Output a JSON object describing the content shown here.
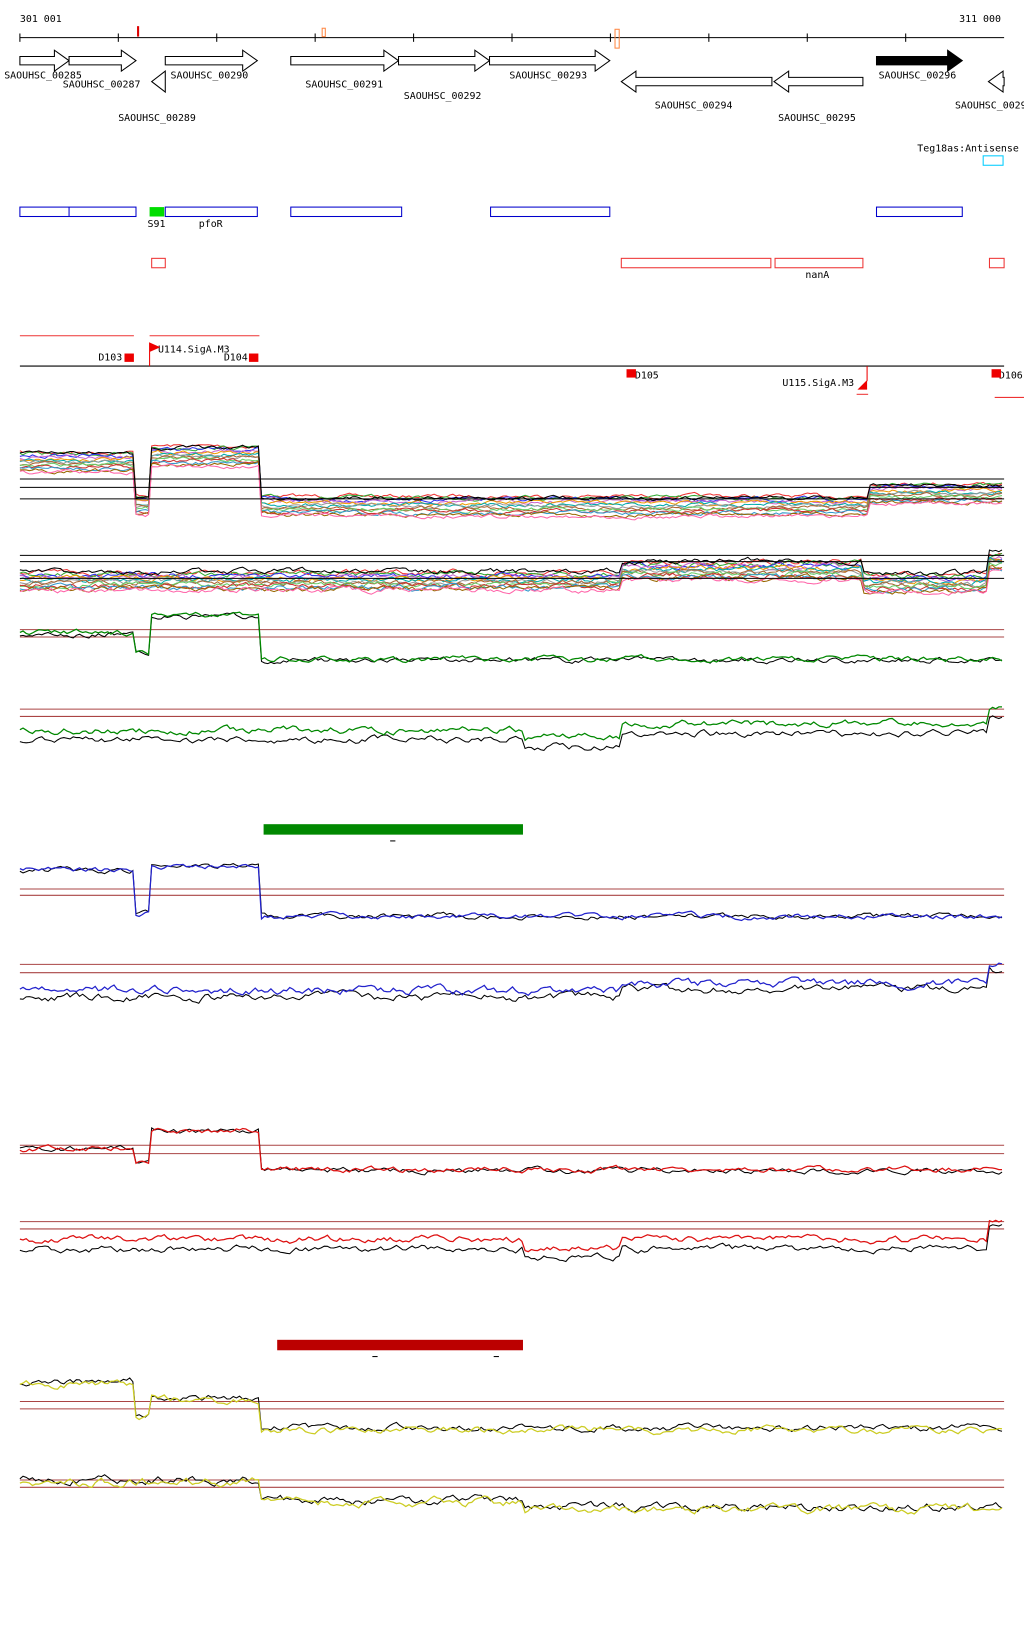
{
  "axis": {
    "start": "301 001",
    "end": "311 000"
  },
  "genes": [
    "SAOUHSC_00285",
    "SAOUHSC_00287",
    "SAOUHSC_00289",
    "SAOUHSC_00290",
    "SAOUHSC_00291",
    "SAOUHSC_00292",
    "SAOUHSC_00293",
    "SAOUHSC_00294",
    "SAOUHSC_00295",
    "SAOUHSC_00296",
    "SAOUHSC_0029"
  ],
  "features": {
    "antisense": "Teg18as:Antisense",
    "s91": "S91",
    "pfor": "pfoR",
    "nana": "nanA"
  },
  "promoters": {
    "u114": "U114.SigA.M3",
    "u115": "U115.SigA.M3"
  },
  "terminators": {
    "d103": "D103",
    "d104": "D104",
    "d105": "D105",
    "d106": "D106"
  }
}
